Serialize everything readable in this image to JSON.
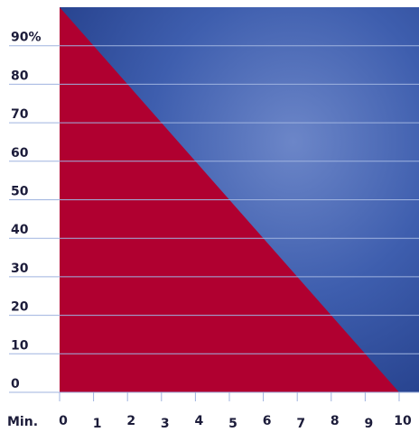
{
  "chart_data": {
    "type": "area",
    "x_label": "Min.",
    "x": [
      0,
      10
    ],
    "values": [
      100,
      0
    ],
    "color": "#b00030",
    "background_color": "#3b5bab",
    "xlim": [
      0,
      10
    ],
    "xticks": [
      0,
      1,
      2,
      3,
      4,
      5,
      6,
      7,
      8,
      9,
      10
    ],
    "ylim": [
      0,
      100
    ],
    "yticks": [
      0,
      10,
      20,
      30,
      40,
      50,
      60,
      70,
      80,
      {
        "value": 90,
        "label": "90%"
      }
    ],
    "grid": true
  }
}
